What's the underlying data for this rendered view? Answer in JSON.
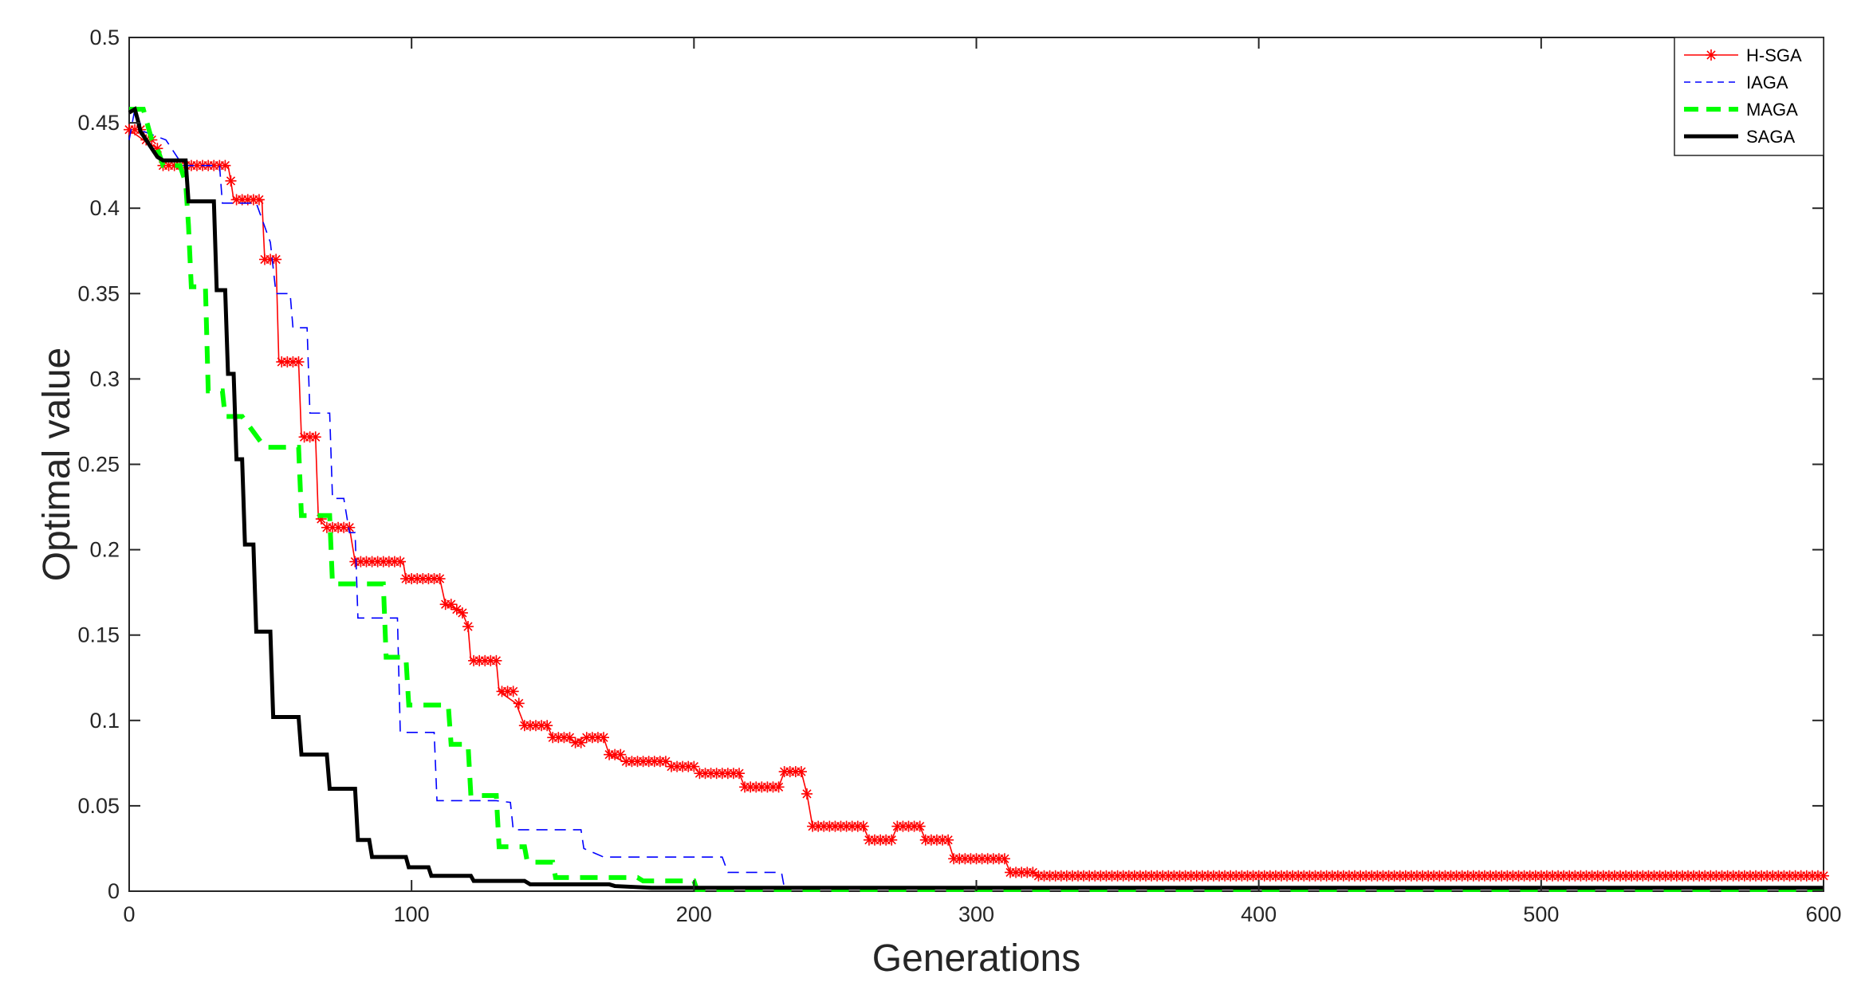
{
  "chart_data": {
    "type": "line",
    "title": "",
    "xlabel": "Generations",
    "ylabel": "Optimal value",
    "xlim": [
      0,
      600
    ],
    "ylim": [
      0,
      0.5
    ],
    "xticks": [
      0,
      100,
      200,
      300,
      400,
      500,
      600
    ],
    "yticks": [
      0,
      0.05,
      0.1,
      0.15,
      0.2,
      0.25,
      0.3,
      0.35,
      0.4,
      0.45,
      0.5
    ],
    "grid": false,
    "legend_position": "top-right",
    "series": [
      {
        "name": "H-SGA",
        "color": "#ff0000",
        "style": "solid-asterisk",
        "points": [
          [
            0,
            0.446
          ],
          [
            5,
            0.44
          ],
          [
            10,
            0.435
          ],
          [
            12,
            0.425
          ],
          [
            25,
            0.425
          ],
          [
            35,
            0.425
          ],
          [
            36,
            0.416
          ],
          [
            37,
            0.405
          ],
          [
            47,
            0.405
          ],
          [
            48,
            0.37
          ],
          [
            52,
            0.37
          ],
          [
            53,
            0.31
          ],
          [
            60,
            0.31
          ],
          [
            61,
            0.266
          ],
          [
            66,
            0.266
          ],
          [
            67,
            0.218
          ],
          [
            70,
            0.213
          ],
          [
            78,
            0.213
          ],
          [
            80,
            0.193
          ],
          [
            97,
            0.193
          ],
          [
            98,
            0.183
          ],
          [
            110,
            0.183
          ],
          [
            112,
            0.168
          ],
          [
            116,
            0.165
          ],
          [
            118,
            0.163
          ],
          [
            120,
            0.155
          ],
          [
            121,
            0.135
          ],
          [
            130,
            0.135
          ],
          [
            131,
            0.117
          ],
          [
            137,
            0.11
          ],
          [
            140,
            0.097
          ],
          [
            148,
            0.097
          ],
          [
            150,
            0.09
          ],
          [
            155,
            0.09
          ],
          [
            158,
            0.087
          ],
          [
            161,
            0.09
          ],
          [
            168,
            0.09
          ],
          [
            170,
            0.08
          ],
          [
            175,
            0.076
          ],
          [
            190,
            0.076
          ],
          [
            192,
            0.073
          ],
          [
            200,
            0.073
          ],
          [
            202,
            0.069
          ],
          [
            216,
            0.069
          ],
          [
            218,
            0.061
          ],
          [
            230,
            0.061
          ],
          [
            232,
            0.07
          ],
          [
            238,
            0.07
          ],
          [
            240,
            0.057
          ],
          [
            242,
            0.038
          ],
          [
            260,
            0.038
          ],
          [
            262,
            0.03
          ],
          [
            270,
            0.03
          ],
          [
            272,
            0.038
          ],
          [
            280,
            0.038
          ],
          [
            282,
            0.03
          ],
          [
            290,
            0.03
          ],
          [
            292,
            0.019
          ],
          [
            310,
            0.019
          ],
          [
            312,
            0.011
          ],
          [
            320,
            0.011
          ],
          [
            322,
            0.009
          ],
          [
            600,
            0.009
          ]
        ]
      },
      {
        "name": "IAGA",
        "color": "#0000ff",
        "style": "dashed",
        "points": [
          [
            0,
            0.44
          ],
          [
            2,
            0.458
          ],
          [
            5,
            0.445
          ],
          [
            13,
            0.44
          ],
          [
            19,
            0.425
          ],
          [
            32,
            0.425
          ],
          [
            33,
            0.403
          ],
          [
            45,
            0.403
          ],
          [
            50,
            0.38
          ],
          [
            52,
            0.35
          ],
          [
            57,
            0.35
          ],
          [
            58,
            0.33
          ],
          [
            63,
            0.33
          ],
          [
            64,
            0.28
          ],
          [
            71,
            0.28
          ],
          [
            72,
            0.23
          ],
          [
            76,
            0.23
          ],
          [
            78,
            0.21
          ],
          [
            80,
            0.21
          ],
          [
            81,
            0.16
          ],
          [
            95,
            0.16
          ],
          [
            96,
            0.093
          ],
          [
            108,
            0.093
          ],
          [
            109,
            0.053
          ],
          [
            130,
            0.053
          ],
          [
            135,
            0.052
          ],
          [
            136,
            0.036
          ],
          [
            160,
            0.036
          ],
          [
            161,
            0.025
          ],
          [
            168,
            0.02
          ],
          [
            210,
            0.02
          ],
          [
            212,
            0.011
          ],
          [
            231,
            0.011
          ],
          [
            232,
            0.002
          ],
          [
            600,
            0.002
          ]
        ]
      },
      {
        "name": "MAGA",
        "color": "#00ff00",
        "style": "thick-dashed",
        "points": [
          [
            0,
            0.458
          ],
          [
            5,
            0.458
          ],
          [
            8,
            0.44
          ],
          [
            10,
            0.435
          ],
          [
            12,
            0.425
          ],
          [
            18,
            0.425
          ],
          [
            20,
            0.415
          ],
          [
            21,
            0.39
          ],
          [
            22,
            0.354
          ],
          [
            27,
            0.354
          ],
          [
            28,
            0.293
          ],
          [
            33,
            0.293
          ],
          [
            34,
            0.278
          ],
          [
            40,
            0.278
          ],
          [
            48,
            0.26
          ],
          [
            60,
            0.26
          ],
          [
            61,
            0.22
          ],
          [
            71,
            0.22
          ],
          [
            72,
            0.18
          ],
          [
            90,
            0.18
          ],
          [
            91,
            0.137
          ],
          [
            98,
            0.137
          ],
          [
            99,
            0.109
          ],
          [
            113,
            0.109
          ],
          [
            114,
            0.086
          ],
          [
            120,
            0.086
          ],
          [
            121,
            0.056
          ],
          [
            130,
            0.056
          ],
          [
            131,
            0.026
          ],
          [
            140,
            0.026
          ],
          [
            141,
            0.017
          ],
          [
            150,
            0.017
          ],
          [
            151,
            0.008
          ],
          [
            180,
            0.008
          ],
          [
            182,
            0.006
          ],
          [
            200,
            0.006
          ],
          [
            201,
            0.001
          ],
          [
            600,
            0.001
          ]
        ]
      },
      {
        "name": "SAGA",
        "color": "#000000",
        "style": "thick-solid",
        "points": [
          [
            0,
            0.456
          ],
          [
            2,
            0.458
          ],
          [
            3,
            0.452
          ],
          [
            4,
            0.445
          ],
          [
            8,
            0.435
          ],
          [
            10,
            0.43
          ],
          [
            12,
            0.428
          ],
          [
            20,
            0.428
          ],
          [
            21,
            0.404
          ],
          [
            30,
            0.404
          ],
          [
            31,
            0.352
          ],
          [
            34,
            0.352
          ],
          [
            35,
            0.303
          ],
          [
            37,
            0.303
          ],
          [
            38,
            0.253
          ],
          [
            40,
            0.253
          ],
          [
            41,
            0.203
          ],
          [
            44,
            0.203
          ],
          [
            45,
            0.152
          ],
          [
            50,
            0.152
          ],
          [
            51,
            0.102
          ],
          [
            60,
            0.102
          ],
          [
            61,
            0.08
          ],
          [
            70,
            0.08
          ],
          [
            71,
            0.06
          ],
          [
            80,
            0.06
          ],
          [
            81,
            0.03
          ],
          [
            85,
            0.03
          ],
          [
            86,
            0.02
          ],
          [
            98,
            0.02
          ],
          [
            99,
            0.014
          ],
          [
            106,
            0.014
          ],
          [
            107,
            0.009
          ],
          [
            121,
            0.009
          ],
          [
            122,
            0.006
          ],
          [
            140,
            0.006
          ],
          [
            142,
            0.004
          ],
          [
            170,
            0.004
          ],
          [
            172,
            0.003
          ],
          [
            185,
            0.002
          ],
          [
            600,
            0.002
          ]
        ]
      }
    ]
  }
}
